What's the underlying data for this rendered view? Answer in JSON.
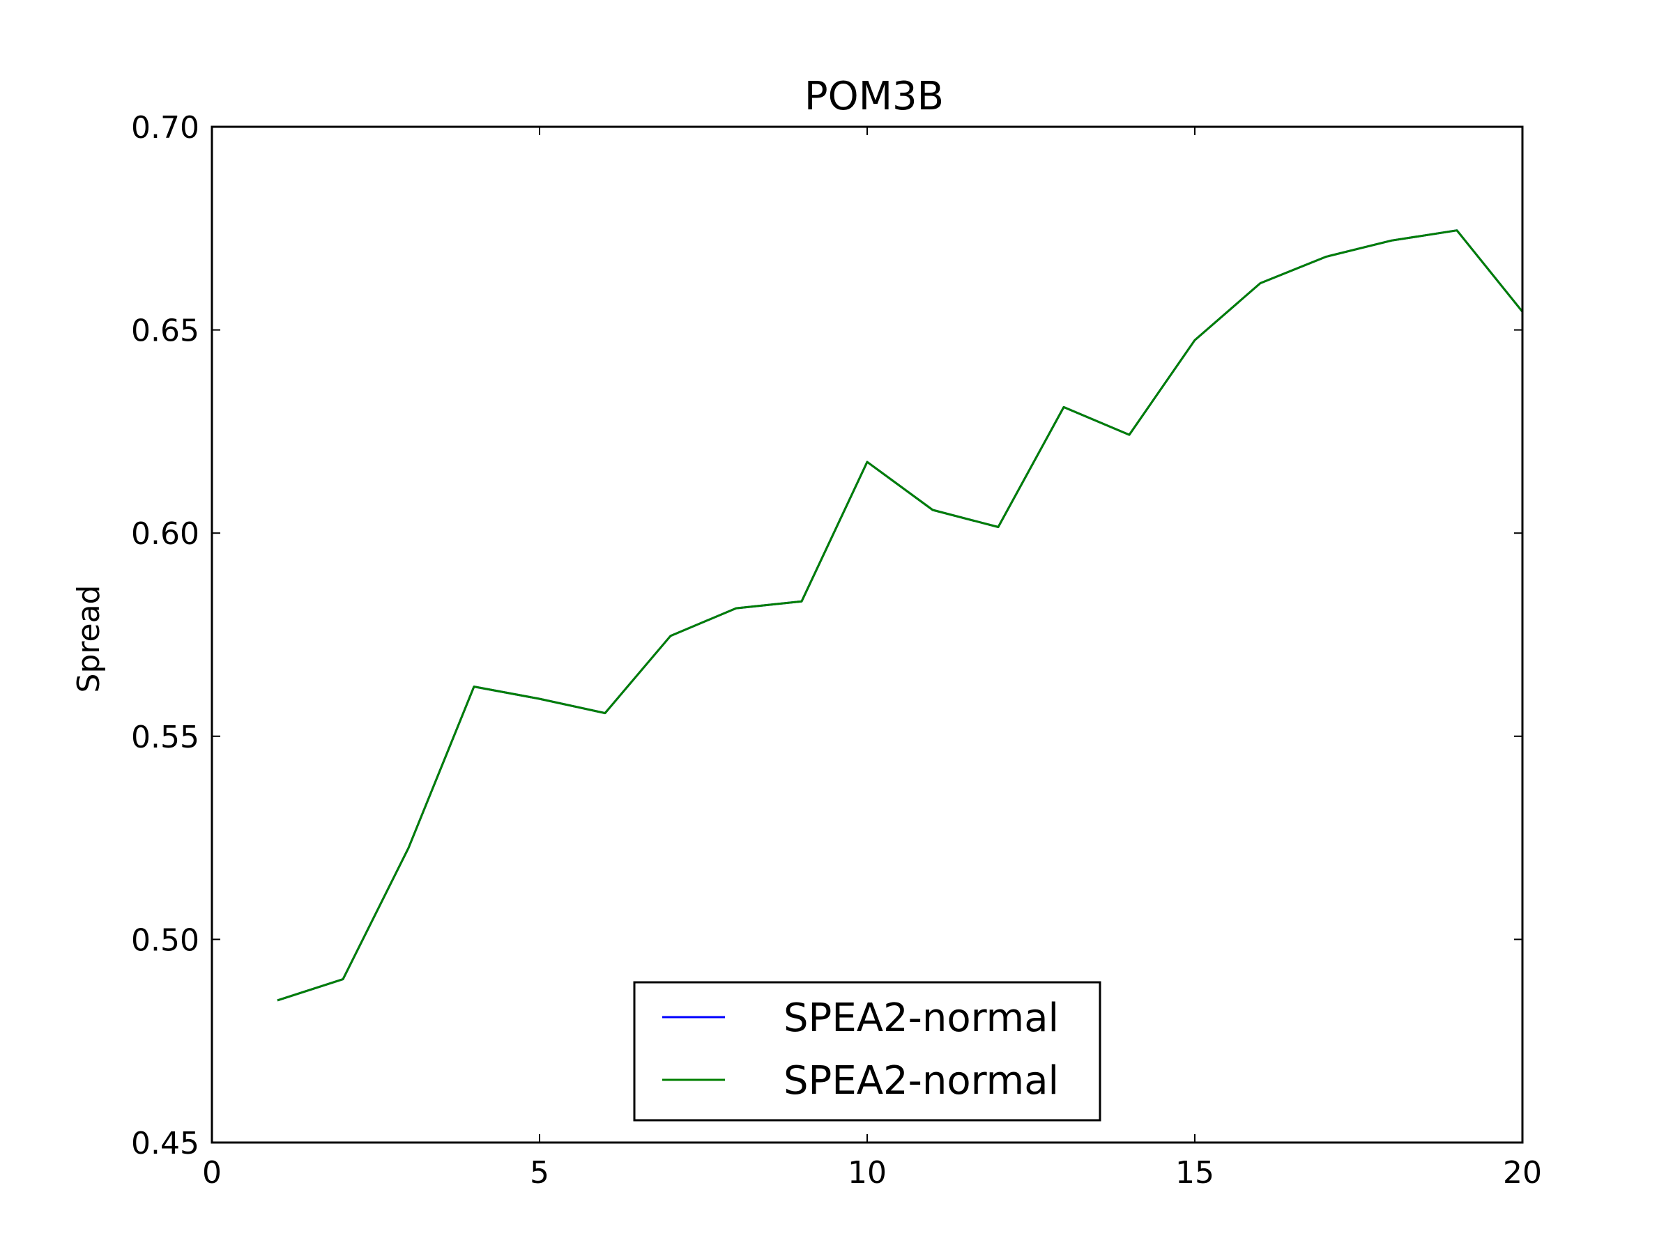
{
  "chart_data": {
    "type": "line",
    "title": "POM3B",
    "xlabel": "",
    "ylabel": "Spread",
    "xlim": [
      0,
      20
    ],
    "ylim": [
      0.45,
      0.7
    ],
    "xticks": [
      0,
      5,
      10,
      15,
      20
    ],
    "xtick_labels": [
      "0",
      "5",
      "10",
      "15",
      "20"
    ],
    "yticks": [
      0.45,
      0.5,
      0.55,
      0.6,
      0.65,
      0.7
    ],
    "ytick_labels": [
      "0.45",
      "0.50",
      "0.55",
      "0.60",
      "0.65",
      "0.70"
    ],
    "grid": false,
    "legend_position": "lower center",
    "series": [
      {
        "name": "SPEA2-normal",
        "color": "#0000ff",
        "x": [
          1,
          2,
          3,
          4,
          5,
          6,
          7,
          8,
          9,
          10,
          11,
          12,
          13,
          14,
          15,
          16,
          17,
          18,
          19,
          20
        ],
        "values": [
          0.485,
          0.4902,
          0.5225,
          0.5622,
          0.5592,
          0.5557,
          0.5747,
          0.5815,
          0.5832,
          0.6175,
          0.6057,
          0.6015,
          0.631,
          0.6242,
          0.6475,
          0.6615,
          0.668,
          0.672,
          0.6745,
          0.6545
        ]
      },
      {
        "name": "SPEA2-normal",
        "color": "#007f00",
        "x": [
          1,
          2,
          3,
          4,
          5,
          6,
          7,
          8,
          9,
          10,
          11,
          12,
          13,
          14,
          15,
          16,
          17,
          18,
          19,
          20
        ],
        "values": [
          0.485,
          0.4902,
          0.5225,
          0.5622,
          0.5592,
          0.5557,
          0.5747,
          0.5815,
          0.5832,
          0.6175,
          0.6057,
          0.6015,
          0.631,
          0.6242,
          0.6475,
          0.6615,
          0.668,
          0.672,
          0.6745,
          0.6545
        ]
      }
    ]
  }
}
